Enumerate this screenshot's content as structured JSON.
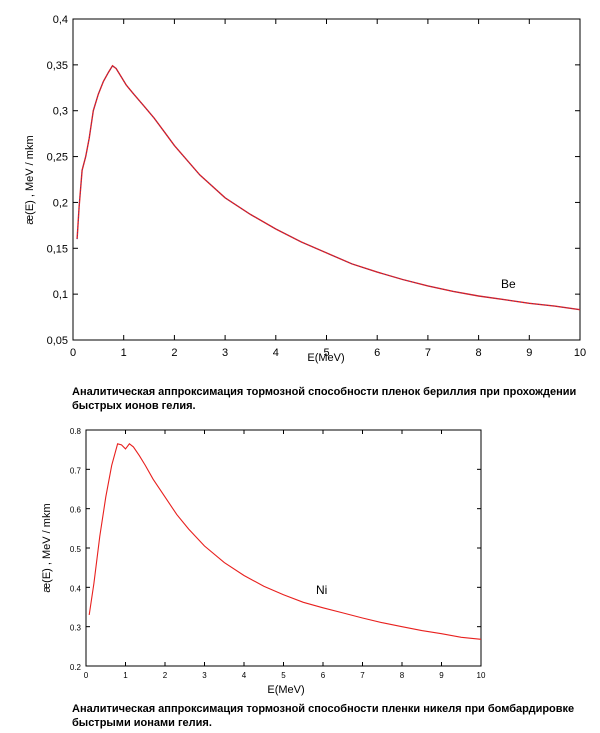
{
  "chart_data": [
    {
      "type": "line",
      "title": "",
      "xlabel": "E(MeV)",
      "ylabel": "æ(E) ,  MeV / mkm",
      "xlim": [
        0,
        10
      ],
      "ylim": [
        0.05,
        0.4
      ],
      "x_ticks": [
        "0",
        "1",
        "2",
        "3",
        "4",
        "5",
        "6",
        "7",
        "8",
        "9",
        "10"
      ],
      "y_ticks": [
        "0,05",
        "0,1",
        "0,15",
        "0,2",
        "0,25",
        "0,3",
        "0,35",
        "0,4"
      ],
      "annotation": "Be",
      "series": [
        {
          "name": "Be",
          "color": "#e8201e",
          "x": [
            0.08,
            0.12,
            0.18,
            0.25,
            0.32,
            0.4,
            0.5,
            0.6,
            0.7,
            0.78,
            0.85,
            0.95,
            1.05,
            1.2,
            1.4,
            1.6,
            1.8,
            2.0,
            2.5,
            3.0,
            3.5,
            4.0,
            4.5,
            5.0,
            5.5,
            6.0,
            6.5,
            7.0,
            7.5,
            8.0,
            8.5,
            9.0,
            9.5,
            10.0
          ],
          "y": [
            0.16,
            0.195,
            0.235,
            0.25,
            0.27,
            0.3,
            0.318,
            0.332,
            0.342,
            0.349,
            0.346,
            0.337,
            0.328,
            0.318,
            0.305,
            0.292,
            0.277,
            0.262,
            0.23,
            0.205,
            0.187,
            0.171,
            0.157,
            0.145,
            0.133,
            0.124,
            0.116,
            0.109,
            0.103,
            0.098,
            0.094,
            0.09,
            0.087,
            0.083
          ]
        }
      ]
    },
    {
      "type": "line",
      "title": "",
      "xlabel": "E(MeV)",
      "ylabel": "æ(E) ,  MeV / mkm",
      "xlim": [
        0,
        10
      ],
      "ylim": [
        0.2,
        0.8
      ],
      "x_ticks": [
        "0",
        "1",
        "2",
        "3",
        "4",
        "5",
        "6",
        "7",
        "8",
        "9",
        "10"
      ],
      "y_ticks": [
        "0.2",
        "0.3",
        "0.4",
        "0.5",
        "0.6",
        "0.7",
        "0.8"
      ],
      "annotation": "Ni",
      "series": [
        {
          "name": "Ni",
          "color": "#e8201e",
          "x": [
            0.08,
            0.2,
            0.35,
            0.5,
            0.65,
            0.8,
            0.9,
            1.0,
            1.1,
            1.2,
            1.35,
            1.5,
            1.7,
            2.0,
            2.3,
            2.6,
            3.0,
            3.5,
            4.0,
            4.5,
            5.0,
            5.5,
            6.0,
            6.5,
            7.0,
            7.5,
            8.0,
            8.5,
            9.0,
            9.5,
            10.0
          ],
          "y": [
            0.33,
            0.41,
            0.53,
            0.63,
            0.71,
            0.765,
            0.762,
            0.752,
            0.765,
            0.757,
            0.735,
            0.71,
            0.675,
            0.63,
            0.585,
            0.548,
            0.505,
            0.463,
            0.43,
            0.403,
            0.381,
            0.362,
            0.348,
            0.335,
            0.322,
            0.31,
            0.3,
            0.29,
            0.282,
            0.273,
            0.268
          ]
        }
      ]
    }
  ],
  "captions": {
    "be": "Аналитическая аппроксимация тормозной способности пленок бериллия при прохождении быстрых ионов гелия.",
    "ni": "Аналитическая аппроксимация тормозной способности пленки никеля при бомбардировке быстрыми ионами гелия."
  }
}
